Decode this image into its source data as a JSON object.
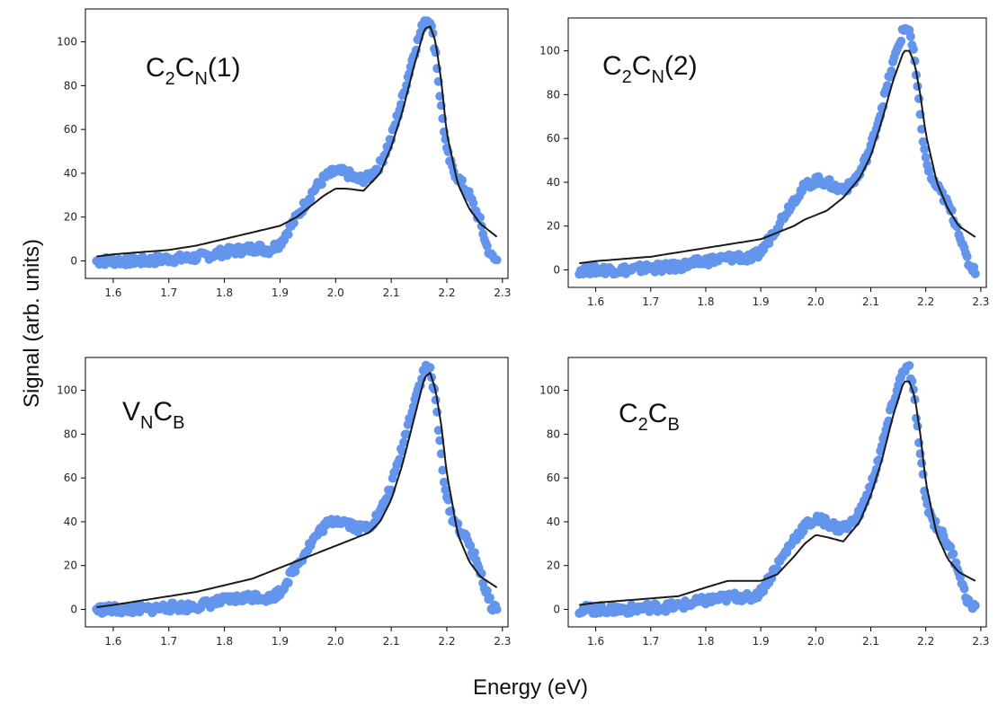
{
  "figure": {
    "ylabel": "Signal (arb. units)",
    "xlabel": "Energy (eV)"
  },
  "colors": {
    "scatter": "#6495ed",
    "fit": "#1a1a1a",
    "axes": "#000000"
  },
  "chart_data": [
    {
      "type": "scatter",
      "panel_label": {
        "main": "C",
        "sub1": "2",
        "main2": "C",
        "sub2": "N",
        "tail": "(1)"
      },
      "xlim": [
        1.55,
        2.31
      ],
      "ylim": [
        -8,
        115
      ],
      "xticks": [
        "1.6",
        "1.7",
        "1.8",
        "1.9",
        "2.0",
        "2.1",
        "2.2",
        "2.3"
      ],
      "yticks": [
        "0",
        "20",
        "40",
        "60",
        "80",
        "100"
      ],
      "grid": false,
      "series": [
        {
          "kind": "data",
          "x": [
            1.57,
            1.6,
            1.63,
            1.66,
            1.7,
            1.73,
            1.76,
            1.8,
            1.83,
            1.86,
            1.88,
            1.9,
            1.92,
            1.94,
            1.96,
            1.98,
            2.0,
            2.02,
            2.04,
            2.06,
            2.08,
            2.1,
            2.12,
            2.14,
            2.16,
            2.17,
            2.18,
            2.19,
            2.2,
            2.21,
            2.22,
            2.24,
            2.26,
            2.27,
            2.28,
            2.29
          ],
          "y": [
            0,
            0,
            0,
            0,
            1,
            1,
            2,
            4,
            5,
            6,
            5,
            8,
            16,
            24,
            32,
            38,
            41,
            40,
            37,
            38,
            44,
            56,
            74,
            94,
            110,
            110,
            95,
            70,
            50,
            42,
            38,
            30,
            18,
            8,
            2,
            0
          ]
        },
        {
          "kind": "fit",
          "x": [
            1.57,
            1.6,
            1.65,
            1.7,
            1.75,
            1.8,
            1.85,
            1.9,
            1.93,
            1.96,
            1.98,
            2.0,
            2.02,
            2.05,
            2.08,
            2.1,
            2.12,
            2.14,
            2.16,
            2.17,
            2.18,
            2.19,
            2.2,
            2.22,
            2.24,
            2.26,
            2.29
          ],
          "y": [
            2,
            3,
            4,
            5,
            7,
            10,
            13,
            16,
            20,
            26,
            30,
            33,
            33,
            32,
            40,
            52,
            68,
            88,
            106,
            107,
            100,
            82,
            58,
            35,
            24,
            17,
            11
          ]
        }
      ]
    },
    {
      "type": "scatter",
      "panel_label": {
        "main": "C",
        "sub1": "2",
        "main2": "C",
        "sub2": "N",
        "tail": "(2)"
      },
      "xlim": [
        1.55,
        2.31
      ],
      "ylim": [
        -8,
        115
      ],
      "xticks": [
        "1.6",
        "1.7",
        "1.8",
        "1.9",
        "2.0",
        "2.1",
        "2.2",
        "2.3"
      ],
      "yticks": [
        "0",
        "20",
        "40",
        "60",
        "80",
        "100"
      ],
      "grid": false,
      "series": [
        {
          "kind": "data",
          "x": [
            1.57,
            1.6,
            1.63,
            1.66,
            1.7,
            1.73,
            1.76,
            1.8,
            1.83,
            1.86,
            1.88,
            1.9,
            1.92,
            1.94,
            1.96,
            1.98,
            2.0,
            2.02,
            2.04,
            2.06,
            2.08,
            2.1,
            2.12,
            2.14,
            2.16,
            2.17,
            2.18,
            2.19,
            2.2,
            2.21,
            2.22,
            2.24,
            2.26,
            2.27,
            2.28,
            2.29
          ],
          "y": [
            0,
            0,
            0,
            0,
            1,
            1,
            2,
            4,
            5,
            6,
            5,
            8,
            16,
            24,
            32,
            38,
            41,
            40,
            37,
            38,
            44,
            56,
            74,
            94,
            110,
            110,
            95,
            70,
            50,
            42,
            38,
            30,
            18,
            8,
            2,
            0
          ]
        },
        {
          "kind": "fit",
          "x": [
            1.57,
            1.6,
            1.65,
            1.7,
            1.75,
            1.8,
            1.85,
            1.9,
            1.93,
            1.96,
            1.98,
            2.0,
            2.02,
            2.05,
            2.08,
            2.1,
            2.12,
            2.14,
            2.16,
            2.17,
            2.18,
            2.19,
            2.2,
            2.22,
            2.24,
            2.26,
            2.29
          ],
          "y": [
            3,
            4,
            5,
            6,
            8,
            10,
            12,
            14,
            17,
            20,
            23,
            25,
            27,
            33,
            42,
            52,
            68,
            86,
            100,
            100,
            94,
            80,
            62,
            40,
            28,
            20,
            15
          ]
        }
      ]
    },
    {
      "type": "scatter",
      "panel_label": {
        "main": "V",
        "sub1": "N",
        "main2": "C",
        "sub2": "B",
        "tail": ""
      },
      "xlim": [
        1.55,
        2.31
      ],
      "ylim": [
        -8,
        115
      ],
      "xticks": [
        "1.6",
        "1.7",
        "1.8",
        "1.9",
        "2.0",
        "2.1",
        "2.2",
        "2.3"
      ],
      "yticks": [
        "0",
        "20",
        "40",
        "60",
        "80",
        "100"
      ],
      "grid": false,
      "series": [
        {
          "kind": "data",
          "x": [
            1.57,
            1.6,
            1.63,
            1.66,
            1.7,
            1.73,
            1.76,
            1.8,
            1.83,
            1.86,
            1.88,
            1.9,
            1.92,
            1.94,
            1.96,
            1.98,
            2.0,
            2.02,
            2.04,
            2.06,
            2.08,
            2.1,
            2.12,
            2.14,
            2.16,
            2.17,
            2.18,
            2.19,
            2.2,
            2.21,
            2.22,
            2.24,
            2.26,
            2.27,
            2.28,
            2.29
          ],
          "y": [
            0,
            0,
            0,
            0,
            1,
            1,
            2,
            4,
            5,
            6,
            5,
            8,
            16,
            24,
            32,
            38,
            41,
            40,
            37,
            38,
            44,
            56,
            74,
            94,
            110,
            110,
            95,
            70,
            50,
            42,
            38,
            30,
            18,
            8,
            2,
            0
          ]
        },
        {
          "kind": "fit",
          "x": [
            1.57,
            1.6,
            1.65,
            1.7,
            1.75,
            1.8,
            1.85,
            1.9,
            1.95,
            1.98,
            2.0,
            2.03,
            2.06,
            2.08,
            2.1,
            2.12,
            2.14,
            2.16,
            2.17,
            2.18,
            2.19,
            2.2,
            2.22,
            2.24,
            2.26,
            2.29
          ],
          "y": [
            1,
            2,
            4,
            6,
            8,
            11,
            14,
            19,
            24,
            27,
            29,
            32,
            35,
            40,
            50,
            66,
            86,
            106,
            108,
            100,
            84,
            62,
            34,
            22,
            15,
            10
          ]
        }
      ]
    },
    {
      "type": "scatter",
      "panel_label": {
        "main": "C",
        "sub1": "2",
        "main2": "C",
        "sub2": "B",
        "tail": ""
      },
      "xlim": [
        1.55,
        2.31
      ],
      "ylim": [
        -8,
        115
      ],
      "xticks": [
        "1.6",
        "1.7",
        "1.8",
        "1.9",
        "2.0",
        "2.1",
        "2.2",
        "2.3"
      ],
      "yticks": [
        "0",
        "20",
        "40",
        "60",
        "80",
        "100"
      ],
      "grid": false,
      "series": [
        {
          "kind": "data",
          "x": [
            1.57,
            1.6,
            1.63,
            1.66,
            1.7,
            1.73,
            1.76,
            1.8,
            1.83,
            1.86,
            1.88,
            1.9,
            1.92,
            1.94,
            1.96,
            1.98,
            2.0,
            2.02,
            2.04,
            2.06,
            2.08,
            2.1,
            2.12,
            2.14,
            2.16,
            2.17,
            2.18,
            2.19,
            2.2,
            2.21,
            2.22,
            2.24,
            2.26,
            2.27,
            2.28,
            2.29
          ],
          "y": [
            0,
            0,
            0,
            0,
            1,
            1,
            2,
            4,
            5,
            6,
            5,
            8,
            16,
            24,
            32,
            38,
            41,
            40,
            37,
            38,
            44,
            56,
            74,
            94,
            110,
            110,
            95,
            70,
            50,
            42,
            38,
            30,
            18,
            8,
            2,
            0
          ]
        },
        {
          "kind": "fit",
          "x": [
            1.57,
            1.6,
            1.65,
            1.7,
            1.75,
            1.8,
            1.84,
            1.87,
            1.9,
            1.93,
            1.96,
            1.98,
            2.0,
            2.02,
            2.05,
            2.08,
            2.1,
            2.12,
            2.14,
            2.16,
            2.17,
            2.18,
            2.19,
            2.2,
            2.22,
            2.24,
            2.26,
            2.29
          ],
          "y": [
            2,
            3,
            4,
            5,
            6,
            10,
            13,
            13,
            13,
            16,
            24,
            30,
            34,
            33,
            31,
            40,
            52,
            68,
            88,
            104,
            104,
            97,
            80,
            58,
            34,
            23,
            17,
            13
          ]
        }
      ]
    }
  ]
}
